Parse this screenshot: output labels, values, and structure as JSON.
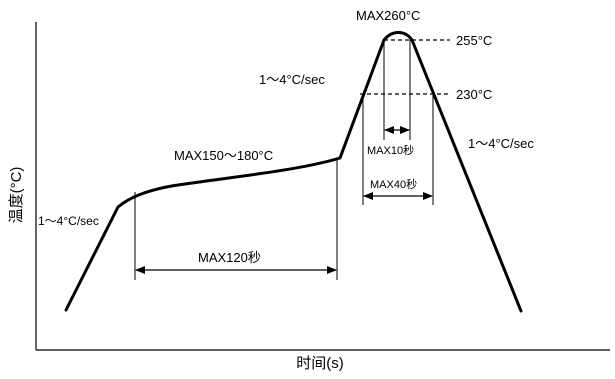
{
  "axes": {
    "y_title": "温度(°C)",
    "x_title": "时间(s)"
  },
  "temperatures": {
    "peak": "MAX260°C",
    "upper_threshold": "255°C",
    "lower_threshold": "230°C",
    "soak": "MAX150～180°C"
  },
  "rates": {
    "preheat": "1～4°C/sec",
    "ramp_to_peak": "1～4°C/sec",
    "cooling": "1～4°C/sec"
  },
  "durations": {
    "soak": "MAX120秒",
    "above_255": "MAX10秒",
    "above_230": "MAX40秒"
  }
}
